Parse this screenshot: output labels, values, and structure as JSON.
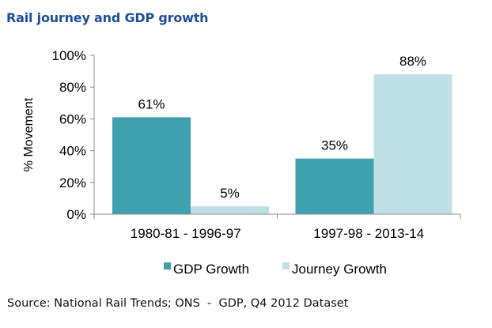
{
  "chart_data": {
    "type": "bar",
    "title": "Rail journey and GDP growth",
    "xlabel": "",
    "ylabel": "% Movement",
    "categories": [
      "1980-81 - 1996-97",
      "1997-98 - 2013-14"
    ],
    "series": [
      {
        "name": "GDP Growth",
        "color": "#3fa0ae",
        "values": [
          61,
          35
        ],
        "labels": [
          "61%",
          "35%"
        ]
      },
      {
        "name": "Journey Growth",
        "color": "#bfe0e6",
        "values": [
          5,
          88
        ],
        "labels": [
          "5%",
          "88%"
        ]
      }
    ],
    "ylim": [
      0,
      100
    ],
    "yticks": [
      0,
      20,
      40,
      60,
      80,
      100
    ],
    "ytick_labels": [
      "0%",
      "20%",
      "40%",
      "60%",
      "80%",
      "100%"
    ],
    "grid": false,
    "legend_position": "bottom"
  },
  "source": "Source: National Rail Trends; ONS  -  GDP, Q4 2012 Dataset"
}
